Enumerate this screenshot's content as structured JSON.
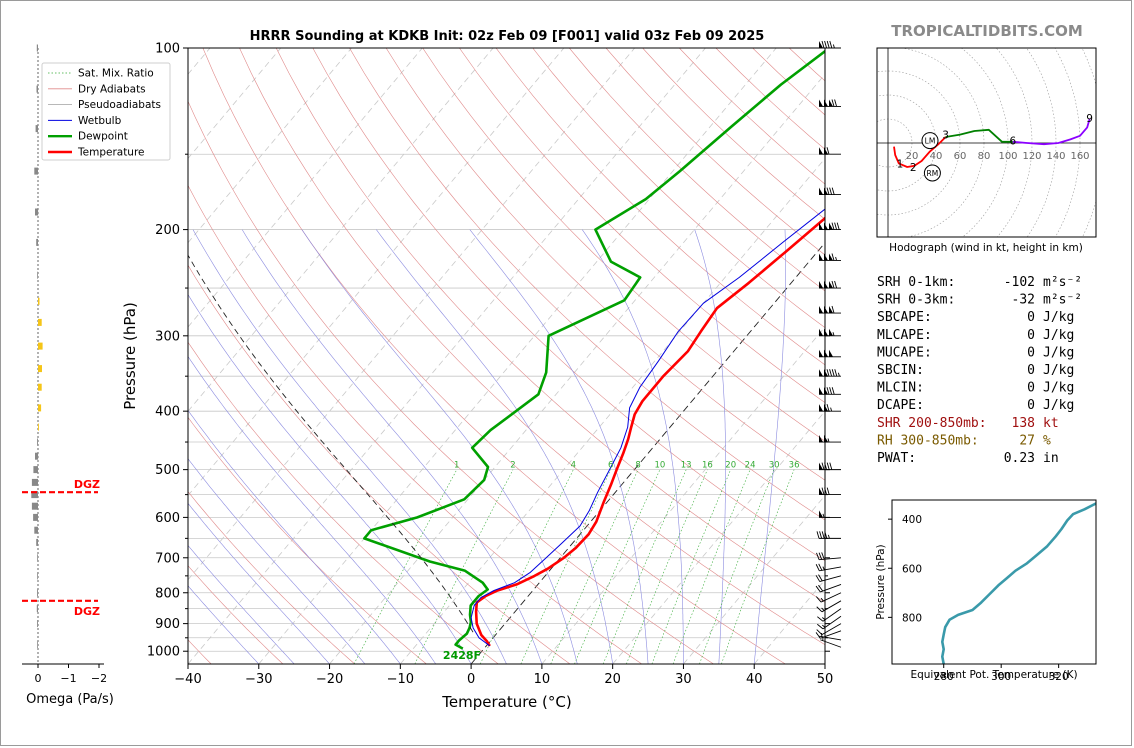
{
  "title": "HRRR Sounding at KDKB Init: 02z Feb 09 [F001] valid 03z Feb 09 2025",
  "brand": "TROPICALTIDBITS.COM",
  "chart_data": [
    {
      "type": "line",
      "name": "skew-t",
      "xlabel": "Temperature (°C)",
      "ylabel": "Pressure (hPa)",
      "xlim": [
        -40,
        50
      ],
      "ylim": [
        1050,
        100
      ],
      "x_ticks": [
        -40,
        -30,
        -20,
        -10,
        0,
        10,
        20,
        30,
        40,
        50
      ],
      "y_ticks": [
        100,
        200,
        300,
        400,
        500,
        600,
        700,
        800,
        900,
        1000
      ],
      "y_scale": "log",
      "legend": {
        "placement": "upper-left",
        "entries": [
          "Sat. Mix. Ratio",
          "Dry Adiabats",
          "Pseudoadiabats",
          "Wetbulb",
          "Dewpoint",
          "Temperature"
        ]
      },
      "mixing_ratio_labels": [
        "1",
        "2",
        "4",
        "6",
        "8",
        "10",
        "13",
        "16",
        "20",
        "24",
        "30",
        "36"
      ],
      "surface_label": "2428F",
      "series": [
        {
          "name": "Temperature",
          "color": "#ff0000",
          "points": [
            [
              0.5,
              980
            ],
            [
              -0.5,
              962
            ],
            [
              -2,
              940
            ],
            [
              -4,
              900
            ],
            [
              -5.5,
              860
            ],
            [
              -6.5,
              830
            ],
            [
              -6,
              810
            ],
            [
              -5,
              793
            ],
            [
              -3,
              775
            ],
            [
              -1.5,
              750
            ],
            [
              -0.5,
              730
            ],
            [
              0.5,
              700
            ],
            [
              1,
              675
            ],
            [
              1.2,
              640
            ],
            [
              0.8,
              610
            ],
            [
              -0.5,
              565
            ],
            [
              -1.5,
              530
            ],
            [
              -2.5,
              500
            ],
            [
              -3.5,
              470
            ],
            [
              -4.5,
              445
            ],
            [
              -5.5,
              425
            ],
            [
              -6.5,
              405
            ],
            [
              -7,
              385
            ],
            [
              -7,
              350
            ],
            [
              -6.5,
              318
            ],
            [
              -7,
              295
            ],
            [
              -7.5,
              270
            ],
            [
              -6,
              245
            ],
            [
              -4.5,
              218
            ],
            [
              -3,
              193
            ],
            [
              -1.5,
              165
            ],
            [
              -1.8,
              155
            ],
            [
              -2.5,
              140
            ],
            [
              -2.8,
              120
            ],
            [
              -1.5,
              110
            ],
            [
              2.5,
              100
            ]
          ]
        },
        {
          "name": "Dewpoint",
          "color": "#00a000",
          "points": [
            [
              -3,
              990
            ],
            [
              -4.5,
              975
            ],
            [
              -4.5,
              960
            ],
            [
              -4.2,
              935
            ],
            [
              -4.5,
              915
            ],
            [
              -5,
              895
            ],
            [
              -6,
              870
            ],
            [
              -7,
              840
            ],
            [
              -7,
              810
            ],
            [
              -6.5,
              790
            ],
            [
              -8,
              770
            ],
            [
              -12,
              735
            ],
            [
              -18,
              710
            ],
            [
              -30,
              650
            ],
            [
              -30,
              630
            ],
            [
              -25,
              600
            ],
            [
              -20.5,
              560
            ],
            [
              -20,
              520
            ],
            [
              -21,
              495
            ],
            [
              -25.5,
              460
            ],
            [
              -25,
              430
            ],
            [
              -22.5,
              375
            ],
            [
              -24,
              345
            ],
            [
              -28,
              300
            ],
            [
              -21.5,
              262
            ],
            [
              -22,
              240
            ],
            [
              -28,
              226
            ],
            [
              -34,
              200
            ],
            [
              -30.5,
              178
            ],
            [
              -29,
              160
            ],
            [
              -27,
              135
            ],
            [
              -25,
              115
            ],
            [
              -22.5,
              100
            ]
          ]
        },
        {
          "name": "Wetbulb",
          "color": "#0000e0",
          "points": [
            [
              0.5,
              980
            ],
            [
              -2,
              950
            ],
            [
              -4,
              915
            ],
            [
              -5.5,
              880
            ],
            [
              -6.5,
              840
            ],
            [
              -6.5,
              815
            ],
            [
              -5.5,
              793
            ],
            [
              -3.5,
              770
            ],
            [
              -2.5,
              740
            ],
            [
              -2,
              700
            ],
            [
              -1.5,
              660
            ],
            [
              -1,
              620
            ],
            [
              -1.5,
              585
            ],
            [
              -2.5,
              545
            ],
            [
              -3.5,
              500
            ],
            [
              -4.5,
              460
            ],
            [
              -6,
              425
            ],
            [
              -8,
              395
            ],
            [
              -9,
              365
            ],
            [
              -9.5,
              330
            ],
            [
              -10.2,
              295
            ],
            [
              -10,
              265
            ],
            [
              -8,
              240
            ],
            [
              -6,
              210
            ],
            [
              -4,
              185
            ],
            [
              -2.5,
              165
            ],
            [
              -2.7,
              150
            ],
            [
              -3.2,
              135
            ],
            [
              -3.4,
              120
            ],
            [
              -1.8,
              110
            ],
            [
              2,
              100
            ]
          ]
        }
      ]
    },
    {
      "type": "bar",
      "name": "omega",
      "xlabel": "Omega (Pa/s)",
      "x_ticks": [
        "0",
        "−1",
        "−2"
      ],
      "xlim": [
        0.25,
        -2.5
      ],
      "dgz_label": "DGZ",
      "dgz_levels": [
        545,
        825
      ],
      "bars": [
        {
          "p": 100,
          "value": 0.04,
          "color": "#888888"
        },
        {
          "p": 117,
          "value": 0.05,
          "color": "#888888"
        },
        {
          "p": 136,
          "value": 0.08,
          "color": "#888888"
        },
        {
          "p": 160,
          "value": 0.12,
          "color": "#888888"
        },
        {
          "p": 187,
          "value": 0.1,
          "color": "#888888"
        },
        {
          "p": 210,
          "value": 0.06,
          "color": "#888888"
        },
        {
          "p": 238,
          "value": 0.02,
          "color": "#888888"
        },
        {
          "p": 263,
          "value": -0.05,
          "color": "#f5c518"
        },
        {
          "p": 285,
          "value": -0.12,
          "color": "#f5c518"
        },
        {
          "p": 312,
          "value": -0.15,
          "color": "#f5c518"
        },
        {
          "p": 340,
          "value": -0.13,
          "color": "#f5c518"
        },
        {
          "p": 365,
          "value": -0.12,
          "color": "#f5c518"
        },
        {
          "p": 395,
          "value": -0.1,
          "color": "#f5c518"
        },
        {
          "p": 425,
          "value": -0.03,
          "color": "#f5c518"
        },
        {
          "p": 450,
          "value": 0.03,
          "color": "#888888"
        },
        {
          "p": 475,
          "value": 0.1,
          "color": "#888888"
        },
        {
          "p": 500,
          "value": 0.15,
          "color": "#888888"
        },
        {
          "p": 525,
          "value": 0.2,
          "color": "#888888"
        },
        {
          "p": 550,
          "value": 0.22,
          "color": "#888888"
        },
        {
          "p": 575,
          "value": 0.2,
          "color": "#888888"
        },
        {
          "p": 600,
          "value": 0.16,
          "color": "#888888"
        },
        {
          "p": 630,
          "value": 0.12,
          "color": "#888888"
        },
        {
          "p": 660,
          "value": 0.06,
          "color": "#888888"
        },
        {
          "p": 700,
          "value": 0.02,
          "color": "#888888"
        },
        {
          "p": 750,
          "value": 0.02,
          "color": "#888888"
        },
        {
          "p": 800,
          "value": 0.03,
          "color": "#888888"
        },
        {
          "p": 850,
          "value": 0.04,
          "color": "#888888"
        },
        {
          "p": 900,
          "value": 0.03,
          "color": "#888888"
        },
        {
          "p": 975,
          "value": 0.02,
          "color": "#888888"
        }
      ]
    },
    {
      "type": "line",
      "name": "hodograph",
      "xlabel": "Hodograph (wind in kt, height in km)",
      "ring_labels": [
        "20",
        "40",
        "60",
        "80",
        "100",
        "120",
        "140",
        "160"
      ],
      "height_labels": [
        {
          "km": "1",
          "u": 10,
          "v": -17
        },
        {
          "km": "2",
          "u": 21,
          "v": -20
        },
        {
          "km": "3",
          "u": 48,
          "v": 7
        },
        {
          "km": "6",
          "u": 104,
          "v": 2
        },
        {
          "km": "9",
          "u": 168,
          "v": 21
        }
      ],
      "markers": [
        {
          "label": "LM",
          "u": 35,
          "v": 2
        },
        {
          "label": "RM",
          "u": 37,
          "v": -25
        }
      ],
      "segments": [
        {
          "color": "#ff0000",
          "points": [
            [
              5,
              -3
            ],
            [
              6,
              -10
            ],
            [
              9,
              -17
            ],
            [
              16,
              -20
            ],
            [
              22,
              -19
            ],
            [
              28,
              -15
            ],
            [
              35,
              -7
            ],
            [
              42,
              -1
            ],
            [
              48,
              5
            ]
          ]
        },
        {
          "color": "#008000",
          "points": [
            [
              48,
              5
            ],
            [
              60,
              7
            ],
            [
              72,
              10
            ],
            [
              84,
              11
            ],
            [
              95,
              1
            ],
            [
              104,
              1
            ]
          ]
        },
        {
          "color": "#8b00ff",
          "points": [
            [
              104,
              1
            ],
            [
              116,
              0
            ],
            [
              130,
              -1
            ],
            [
              142,
              0
            ],
            [
              152,
              3
            ],
            [
              160,
              6
            ],
            [
              166,
              13
            ],
            [
              168,
              20
            ]
          ]
        }
      ]
    },
    {
      "type": "line",
      "name": "theta-e",
      "xlabel": "Equivalent Pot. Temperature (K)",
      "ylabel": "Pressure (hPa)",
      "xlim": [
        262,
        333
      ],
      "ylim": [
        990,
        322
      ],
      "x_ticks": [
        "280",
        "300",
        "320"
      ],
      "y_ticks": [
        "400",
        "600",
        "800"
      ],
      "color": "#3a9aaa",
      "points": [
        [
          280,
          990
        ],
        [
          279.5,
          960
        ],
        [
          280,
          930
        ],
        [
          279.5,
          900
        ],
        [
          280,
          870
        ],
        [
          280.5,
          840
        ],
        [
          282,
          810
        ],
        [
          285,
          790
        ],
        [
          290,
          770
        ],
        [
          293,
          740
        ],
        [
          296,
          705
        ],
        [
          299,
          670
        ],
        [
          302,
          640
        ],
        [
          305,
          610
        ],
        [
          309,
          580
        ],
        [
          312,
          550
        ],
        [
          316,
          510
        ],
        [
          319,
          470
        ],
        [
          321,
          440
        ],
        [
          323,
          405
        ],
        [
          325,
          380
        ],
        [
          329,
          360
        ],
        [
          334,
          330
        ]
      ]
    }
  ],
  "wind_barbs": [
    {
      "p": 985,
      "dir": 290,
      "kt": 5
    },
    {
      "p": 958,
      "dir": 280,
      "kt": 5
    },
    {
      "p": 925,
      "dir": 250,
      "kt": 10
    },
    {
      "p": 900,
      "dir": 240,
      "kt": 10
    },
    {
      "p": 875,
      "dir": 235,
      "kt": 15
    },
    {
      "p": 850,
      "dir": 235,
      "kt": 15
    },
    {
      "p": 825,
      "dir": 240,
      "kt": 15
    },
    {
      "p": 800,
      "dir": 245,
      "kt": 15
    },
    {
      "p": 775,
      "dir": 250,
      "kt": 20
    },
    {
      "p": 750,
      "dir": 255,
      "kt": 20
    },
    {
      "p": 725,
      "dir": 260,
      "kt": 25
    },
    {
      "p": 700,
      "dir": 265,
      "kt": 30
    },
    {
      "p": 650,
      "dir": 270,
      "kt": 45
    },
    {
      "p": 600,
      "dir": 270,
      "kt": 55
    },
    {
      "p": 550,
      "dir": 270,
      "kt": 80
    },
    {
      "p": 500,
      "dir": 270,
      "kt": 90
    },
    {
      "p": 450,
      "dir": 270,
      "kt": 105
    },
    {
      "p": 400,
      "dir": 270,
      "kt": 115
    },
    {
      "p": 375,
      "dir": 270,
      "kt": 130
    },
    {
      "p": 350,
      "dir": 270,
      "kt": 145
    },
    {
      "p": 325,
      "dir": 270,
      "kt": 150
    },
    {
      "p": 300,
      "dir": 270,
      "kt": 155
    },
    {
      "p": 275,
      "dir": 270,
      "kt": 160
    },
    {
      "p": 250,
      "dir": 270,
      "kt": 170
    },
    {
      "p": 225,
      "dir": 270,
      "kt": 165
    },
    {
      "p": 200,
      "dir": 270,
      "kt": 180
    },
    {
      "p": 175,
      "dir": 270,
      "kt": 130
    },
    {
      "p": 150,
      "dir": 270,
      "kt": 110
    },
    {
      "p": 125,
      "dir": 270,
      "kt": 170
    },
    {
      "p": 100,
      "dir": 270,
      "kt": 95
    }
  ],
  "stats": [
    {
      "label": "SRH 0-1km:",
      "value": "-102",
      "unit": "m²s⁻²",
      "color": "#000000"
    },
    {
      "label": "SRH 0-3km:",
      "value": "-32",
      "unit": "m²s⁻²",
      "color": "#000000"
    },
    {
      "label": "SBCAPE:",
      "value": "0",
      "unit": "J/kg",
      "color": "#000000"
    },
    {
      "label": "MLCAPE:",
      "value": "0",
      "unit": "J/kg",
      "color": "#000000"
    },
    {
      "label": "MUCAPE:",
      "value": "0",
      "unit": "J/kg",
      "color": "#000000"
    },
    {
      "label": "SBCIN:",
      "value": "0",
      "unit": "J/kg",
      "color": "#000000"
    },
    {
      "label": "MLCIN:",
      "value": "0",
      "unit": "J/kg",
      "color": "#000000"
    },
    {
      "label": "DCAPE:",
      "value": "0",
      "unit": "J/kg",
      "color": "#000000"
    },
    {
      "label": "SHR 200-850mb:",
      "value": "138",
      "unit": "kt",
      "color": "#a01010"
    },
    {
      "label": "RH 300-850mb:",
      "value": "27",
      "unit": "%",
      "color": "#7a5a00"
    },
    {
      "label": "PWAT:",
      "value": "0.23",
      "unit": "in",
      "color": "#000000"
    }
  ]
}
